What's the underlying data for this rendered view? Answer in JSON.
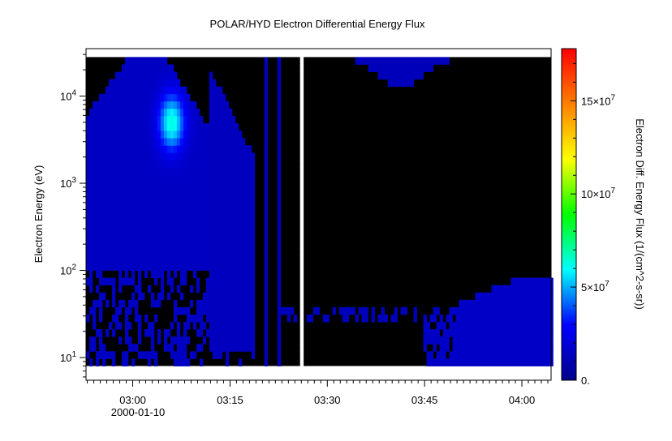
{
  "chart_data": {
    "type": "heatmap",
    "title": "POLAR/HYD  Electron Differential Energy Flux",
    "xlabel": "",
    "ylabel": "Electron Energy (eV)",
    "colorbar_label": "Electron Diff. Energy Flux (1/(cm^2-s-sr))",
    "x_tick_labels": [
      "03:00",
      "03:15",
      "03:30",
      "03:45",
      "04:00"
    ],
    "x_tick_minutes": [
      0,
      15,
      30,
      45,
      60
    ],
    "x_date_label": "2000-01-10",
    "xlim_minutes": [
      -7.2,
      64.5
    ],
    "y_scale": "log",
    "ylim": [
      5.5,
      35000
    ],
    "y_tick_values": [
      10,
      100,
      1000,
      10000
    ],
    "y_tick_labels": [
      {
        "base": "10",
        "exp": "1"
      },
      {
        "base": "10",
        "exp": "2"
      },
      {
        "base": "10",
        "exp": "3"
      },
      {
        "base": "10",
        "exp": "4"
      }
    ],
    "colorbar_range": [
      0,
      178000000
    ],
    "colorbar_ticks": [
      {
        "value": 0,
        "label": "0."
      },
      {
        "value": 50000000,
        "base": "5×10",
        "exp": "7"
      },
      {
        "value": 100000000,
        "base": "10×10",
        "exp": "7"
      },
      {
        "value": 150000000,
        "base": "15×10",
        "exp": "7"
      }
    ],
    "data_energy_range": [
      8,
      28000
    ],
    "data_gap_minutes": [
      25.6,
      26.4
    ],
    "colormap": [
      "#00008b",
      "#0000ff",
      "#00ffff",
      "#00ff00",
      "#ffff00",
      "#ff8000",
      "#ff0000"
    ],
    "background_color": "#000000",
    "series": [
      {
        "name": "flux_peak",
        "time_minutes": 6,
        "energy_ev": 5000,
        "value": 60000000
      },
      {
        "name": "low_energy_band",
        "time_range_minutes": [
          45,
          64.5
        ],
        "energy_range_ev": [
          8,
          80
        ],
        "value": 15000000
      }
    ]
  }
}
